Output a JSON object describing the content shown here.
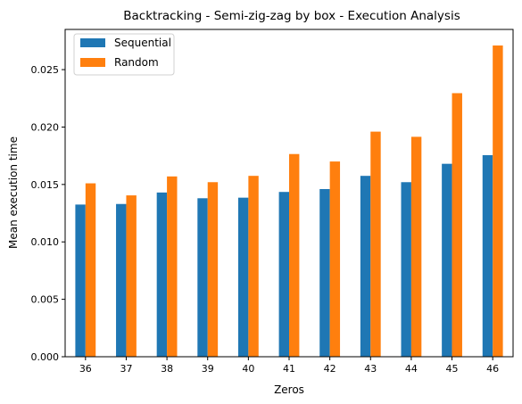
{
  "chart_data": {
    "type": "bar",
    "title": "Backtracking - Semi-zig-zag by box - Execution Analysis",
    "xlabel": "Zeros",
    "ylabel": "Mean execution time",
    "categories": [
      "36",
      "37",
      "38",
      "39",
      "40",
      "41",
      "42",
      "43",
      "44",
      "45",
      "46"
    ],
    "series": [
      {
        "name": "Sequential",
        "color": "#1f77b4",
        "values": [
          0.01325,
          0.0133,
          0.0143,
          0.0138,
          0.01385,
          0.01435,
          0.0146,
          0.01575,
          0.0152,
          0.0168,
          0.01755
        ]
      },
      {
        "name": "Random",
        "color": "#ff7f0e",
        "values": [
          0.0151,
          0.01405,
          0.0157,
          0.0152,
          0.01575,
          0.01765,
          0.017,
          0.0196,
          0.01915,
          0.02295,
          0.0271
        ]
      }
    ],
    "ylim": [
      0,
      0.0285
    ],
    "yticks": [
      "0.000",
      "0.005",
      "0.010",
      "0.015",
      "0.020",
      "0.025"
    ],
    "ytick_values": [
      0,
      0.005,
      0.01,
      0.015,
      0.02,
      0.025
    ],
    "grid": false,
    "legend": "top-left"
  }
}
